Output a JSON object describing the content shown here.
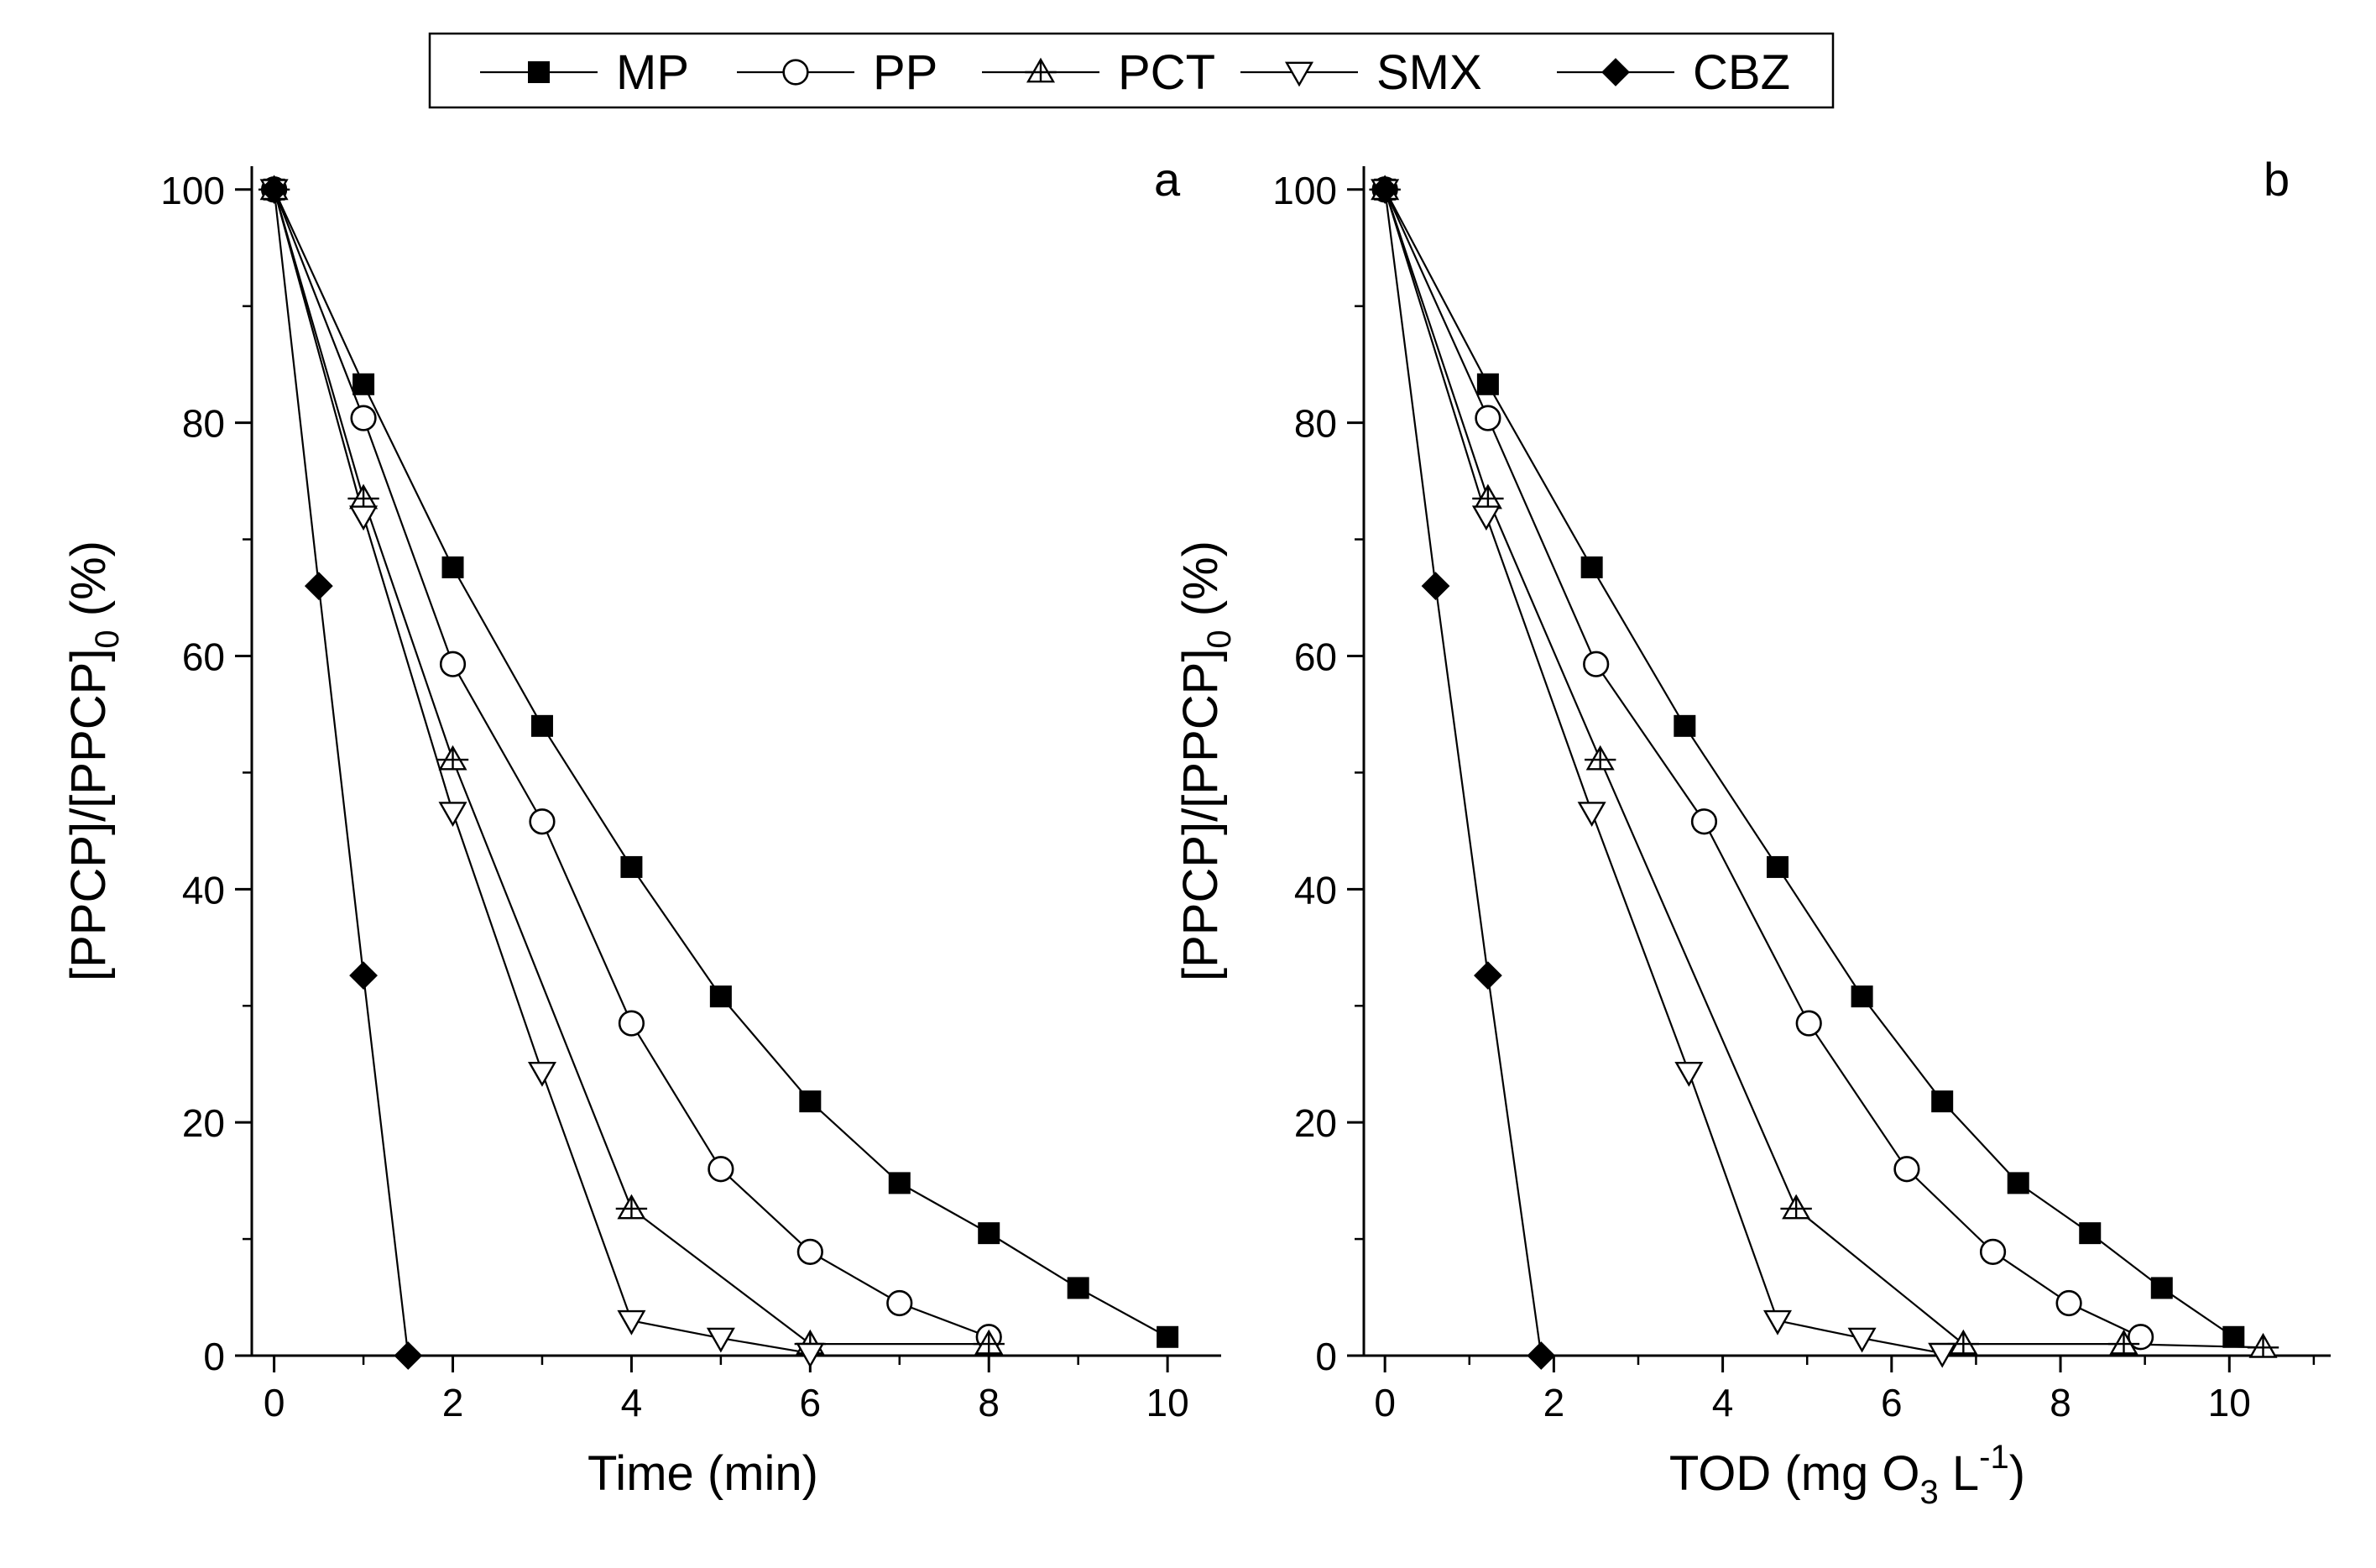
{
  "legend": {
    "position": "top-center",
    "entries": [
      {
        "name": "MP",
        "marker": "filled-square"
      },
      {
        "name": "PP",
        "marker": "open-circle"
      },
      {
        "name": "PCT",
        "marker": "open-triangle-up-cross"
      },
      {
        "name": "SMX",
        "marker": "open-triangle-down"
      },
      {
        "name": "CBZ",
        "marker": "filled-diamond"
      }
    ]
  },
  "chart_data": [
    {
      "type": "line",
      "panel_label": "a",
      "xlabel": "Time (min)",
      "ylabel_main": "[PPCP]/[PPCP]",
      "ylabel_sub": "0",
      "ylabel_tail": " (%)",
      "xlim": [
        -0.25,
        10.6
      ],
      "ylim": [
        0,
        102
      ],
      "xticks": [
        0,
        2,
        4,
        6,
        8,
        10
      ],
      "yticks": [
        0,
        20,
        40,
        60,
        80,
        100
      ],
      "grid": false,
      "series": [
        {
          "name": "MP",
          "x": [
            0,
            1,
            2,
            3,
            4,
            5,
            6,
            7,
            8,
            9,
            10
          ],
          "y": [
            100,
            83.3,
            67.6,
            54.0,
            41.9,
            30.8,
            21.8,
            14.8,
            10.5,
            5.8,
            1.6
          ]
        },
        {
          "name": "PP",
          "x": [
            0,
            1,
            2,
            3,
            4,
            5,
            6,
            7,
            8
          ],
          "y": [
            100,
            80.4,
            59.3,
            45.8,
            28.5,
            16.0,
            8.9,
            4.5,
            1.6
          ]
        },
        {
          "name": "PCT",
          "x": [
            0,
            1,
            2,
            4,
            6,
            8
          ],
          "y": [
            100,
            73.5,
            51.1,
            12.6,
            1.0,
            1.0
          ]
        },
        {
          "name": "SMX",
          "x": [
            0,
            1,
            2,
            3,
            4,
            5,
            6
          ],
          "y": [
            100,
            72.0,
            46.6,
            24.3,
            3.0,
            1.5,
            0.2
          ]
        },
        {
          "name": "CBZ",
          "x": [
            0,
            0.5,
            1,
            1.5
          ],
          "y": [
            100,
            66.0,
            32.6,
            0
          ]
        }
      ]
    },
    {
      "type": "line",
      "panel_label": "b",
      "xlabel_main": "TOD (mg O",
      "xlabel_sub": "3",
      "xlabel_mid": " L",
      "xlabel_sup": "-1",
      "xlabel_tail": ")",
      "ylabel_main": "[PPCP]/[PPCP]",
      "ylabel_sub": "0",
      "ylabel_tail": " (%)",
      "xlim": [
        -0.25,
        11.2
      ],
      "ylim": [
        0,
        102
      ],
      "xticks": [
        0,
        2,
        4,
        6,
        8,
        10
      ],
      "yticks": [
        0,
        20,
        40,
        60,
        80,
        100
      ],
      "grid": false,
      "series": [
        {
          "name": "MP",
          "x": [
            0,
            1.22,
            2.45,
            3.55,
            4.65,
            5.65,
            6.6,
            7.5,
            8.35,
            9.2,
            10.05
          ],
          "y": [
            100,
            83.3,
            67.6,
            54.0,
            41.9,
            30.8,
            21.8,
            14.8,
            10.5,
            5.8,
            1.6
          ]
        },
        {
          "name": "PP",
          "x": [
            0,
            1.22,
            2.5,
            3.78,
            5.02,
            6.18,
            7.2,
            8.1,
            8.95
          ],
          "y": [
            100,
            80.4,
            59.3,
            45.8,
            28.5,
            16.0,
            8.9,
            4.5,
            1.6
          ]
        },
        {
          "name": "PCT",
          "x": [
            0,
            1.22,
            2.55,
            4.87,
            6.85,
            8.75,
            10.4
          ],
          "y": [
            100,
            73.5,
            51.1,
            12.6,
            1.0,
            1.0,
            0.7
          ]
        },
        {
          "name": "SMX",
          "x": [
            0,
            1.2,
            2.45,
            3.6,
            4.65,
            5.65,
            6.6
          ],
          "y": [
            100,
            72.0,
            46.6,
            24.3,
            3.0,
            1.5,
            0.2
          ]
        },
        {
          "name": "CBZ",
          "x": [
            0,
            0.6,
            1.22,
            1.85
          ],
          "y": [
            100,
            66.0,
            32.6,
            0
          ]
        }
      ]
    }
  ]
}
